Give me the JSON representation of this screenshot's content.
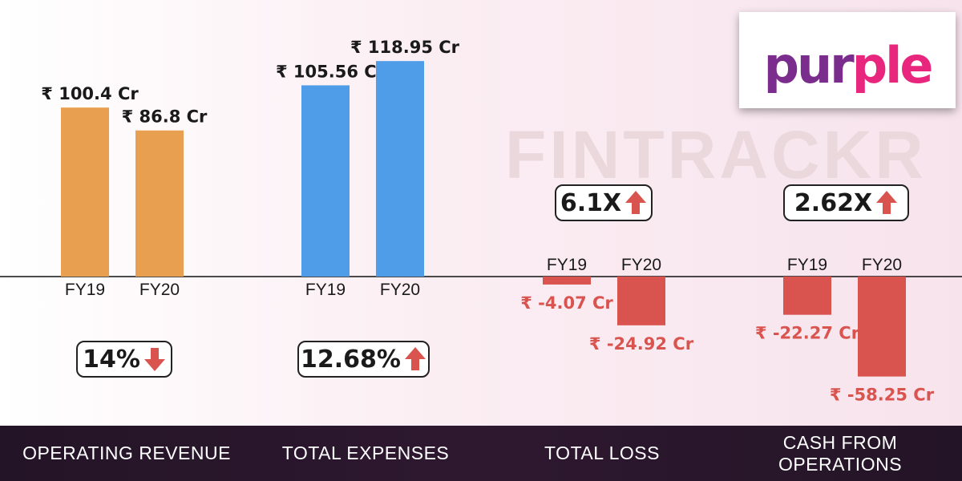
{
  "watermark": "FINTRACKR",
  "logo": {
    "text": "purple",
    "colors": [
      "#7b2d8e",
      "#e8267d"
    ]
  },
  "colors": {
    "revenue": "#e8a050",
    "expenses": "#4f9ce8",
    "negative": "#d9534f",
    "label_negative": "#d9534f",
    "text": "#1a1a1a",
    "bar_bg": "#241427"
  },
  "sections": {
    "revenue": {
      "label": "OPERATING REVENUE",
      "badge": "14%",
      "badge_direction": "down"
    },
    "expenses": {
      "label": "TOTAL EXPENSES",
      "badge": "12.68%",
      "badge_direction": "up"
    },
    "loss": {
      "label": "TOTAL LOSS",
      "badge": "6.1X",
      "badge_direction": "up"
    },
    "cash": {
      "label": "CASH FROM OPERATIONS",
      "badge": "2.62X",
      "badge_direction": "up"
    }
  },
  "chart_data": [
    {
      "type": "bar",
      "title": "OPERATING REVENUE",
      "categories": [
        "FY19",
        "FY20"
      ],
      "values": [
        100.4,
        86.8
      ],
      "value_labels": [
        "₹ 100.4 Cr",
        "₹ 86.8 Cr"
      ],
      "unit": "Cr"
    },
    {
      "type": "bar",
      "title": "TOTAL EXPENSES",
      "categories": [
        "FY19",
        "FY20"
      ],
      "values": [
        105.56,
        118.95
      ],
      "value_labels": [
        "₹ 105.56 Cr",
        "₹ 118.95 Cr"
      ],
      "unit": "Cr"
    },
    {
      "type": "bar",
      "title": "TOTAL LOSS",
      "categories": [
        "FY19",
        "FY20"
      ],
      "values": [
        -4.07,
        -24.92
      ],
      "value_labels": [
        "₹ -4.07 Cr",
        "₹ -24.92 Cr"
      ],
      "unit": "Cr"
    },
    {
      "type": "bar",
      "title": "CASH FROM OPERATIONS",
      "categories": [
        "FY19",
        "FY20"
      ],
      "values": [
        -22.27,
        -58.25
      ],
      "value_labels": [
        "₹ -22.27 Cr",
        "₹ -58.25 Cr"
      ],
      "unit": "Cr"
    }
  ]
}
